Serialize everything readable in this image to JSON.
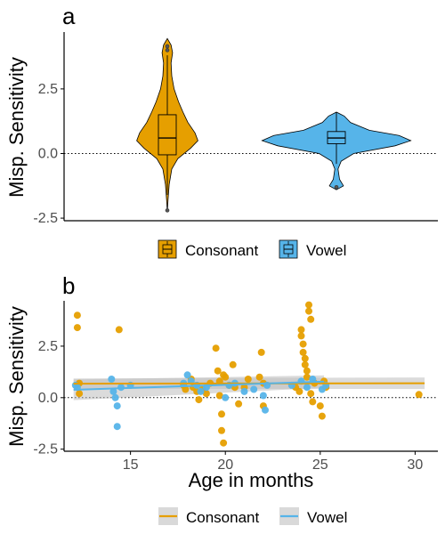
{
  "colors": {
    "consonant": "#E69F00",
    "vowel": "#56B4E9",
    "axis": "#000000",
    "zero_line": "#000000",
    "ribbon": "#BEBEBE",
    "legend_key_bg": "#D9D9D9"
  },
  "chart_data": [
    {
      "panel": "a",
      "type": "violin",
      "ylabel": "Misp. Sensitivity",
      "xlabel": "",
      "ylim": [
        -2.6,
        4.7
      ],
      "yticks": [
        "-2.5",
        "0.0",
        "2.5"
      ],
      "reference_line": {
        "y": 0,
        "style": "dotted"
      },
      "series": [
        {
          "name": "Consonant",
          "color": "#E69F00",
          "min": -2.2,
          "q1": -0.05,
          "median": 0.6,
          "q3": 1.5,
          "max": 4.4,
          "whisker_low": -1.6,
          "whisker_high": 3.8,
          "outliers": [
            -2.2,
            4.0,
            4.15
          ],
          "density": [
            [
              -2.25,
              0.0
            ],
            [
              -1.8,
              0.02
            ],
            [
              -1.2,
              0.05
            ],
            [
              -0.6,
              0.12
            ],
            [
              -0.2,
              0.28
            ],
            [
              0.2,
              0.62
            ],
            [
              0.5,
              0.82
            ],
            [
              0.8,
              0.74
            ],
            [
              1.2,
              0.55
            ],
            [
              1.6,
              0.42
            ],
            [
              2.0,
              0.3
            ],
            [
              2.5,
              0.18
            ],
            [
              3.0,
              0.12
            ],
            [
              3.5,
              0.1
            ],
            [
              3.9,
              0.14
            ],
            [
              4.2,
              0.1
            ],
            [
              4.45,
              0.0
            ]
          ]
        },
        {
          "name": "Vowel",
          "color": "#56B4E9",
          "min": -1.35,
          "q1": 0.38,
          "median": 0.6,
          "q3": 0.85,
          "max": 1.6,
          "whisker_low": -0.4,
          "whisker_high": 1.6,
          "outliers": [
            -1.3
          ],
          "density": [
            [
              -1.4,
              0.0
            ],
            [
              -1.25,
              0.09
            ],
            [
              -1.0,
              0.04
            ],
            [
              -0.6,
              0.02
            ],
            [
              -0.3,
              0.06
            ],
            [
              0.0,
              0.22
            ],
            [
              0.3,
              0.75
            ],
            [
              0.5,
              0.95
            ],
            [
              0.7,
              0.8
            ],
            [
              0.9,
              0.42
            ],
            [
              1.2,
              0.18
            ],
            [
              1.45,
              0.1
            ],
            [
              1.6,
              0.0
            ]
          ]
        }
      ],
      "legend": {
        "position": "bottom",
        "entries": [
          "Consonant",
          "Vowel"
        ]
      }
    },
    {
      "panel": "b",
      "type": "scatter",
      "xlabel": "Age in months",
      "ylabel": "Misp. Sensitivity",
      "xlim": [
        11.5,
        31.2
      ],
      "ylim": [
        -2.6,
        4.7
      ],
      "xticks": [
        "15",
        "20",
        "25",
        "30"
      ],
      "yticks": [
        "-2.5",
        "0.0",
        "2.5"
      ],
      "reference_line": {
        "y": 0,
        "style": "dotted"
      },
      "series": [
        {
          "name": "Consonant",
          "color": "#E69F00",
          "points": [
            [
              12.2,
              4.0
            ],
            [
              12.2,
              3.4
            ],
            [
              12.3,
              0.7
            ],
            [
              12.3,
              0.2
            ],
            [
              14.4,
              3.3
            ],
            [
              17.8,
              0.6
            ],
            [
              17.9,
              0.4
            ],
            [
              18.2,
              0.9
            ],
            [
              18.3,
              0.5
            ],
            [
              18.5,
              0.3
            ],
            [
              18.6,
              -0.1
            ],
            [
              18.8,
              0.4
            ],
            [
              19.0,
              0.2
            ],
            [
              19.2,
              0.7
            ],
            [
              19.5,
              2.4
            ],
            [
              19.6,
              1.3
            ],
            [
              19.7,
              0.8
            ],
            [
              19.7,
              0.1
            ],
            [
              19.8,
              -0.8
            ],
            [
              19.8,
              -1.6
            ],
            [
              19.9,
              -2.2
            ],
            [
              19.9,
              1.1
            ],
            [
              20.0,
              1.0
            ],
            [
              20.2,
              0.6
            ],
            [
              20.4,
              1.6
            ],
            [
              20.5,
              0.5
            ],
            [
              20.7,
              -0.3
            ],
            [
              21.0,
              0.5
            ],
            [
              21.2,
              0.9
            ],
            [
              21.8,
              1.0
            ],
            [
              21.9,
              2.2
            ],
            [
              22.0,
              0.7
            ],
            [
              22.0,
              -0.4
            ],
            [
              23.7,
              0.5
            ],
            [
              23.9,
              0.3
            ],
            [
              24.0,
              3.3
            ],
            [
              24.0,
              3.0
            ],
            [
              24.1,
              2.6
            ],
            [
              24.1,
              2.2
            ],
            [
              24.2,
              1.9
            ],
            [
              24.2,
              1.6
            ],
            [
              24.3,
              1.3
            ],
            [
              24.3,
              1.0
            ],
            [
              24.4,
              4.5
            ],
            [
              24.4,
              4.2
            ],
            [
              24.5,
              3.8
            ],
            [
              24.5,
              0.2
            ],
            [
              24.6,
              -0.2
            ],
            [
              24.7,
              0.7
            ],
            [
              25.0,
              -0.4
            ],
            [
              25.1,
              -0.9
            ],
            [
              25.2,
              0.8
            ],
            [
              25.3,
              0.5
            ],
            [
              30.2,
              0.15
            ]
          ],
          "trend": {
            "x": [
              12.0,
              30.5
            ],
            "y": [
              0.68,
              0.7
            ],
            "ribbon": [
              0.25,
              0.28
            ]
          }
        },
        {
          "name": "Vowel",
          "color": "#56B4E9",
          "points": [
            [
              12.1,
              0.6
            ],
            [
              12.2,
              0.5
            ],
            [
              14.0,
              0.9
            ],
            [
              14.1,
              0.3
            ],
            [
              14.2,
              0.0
            ],
            [
              14.3,
              -0.4
            ],
            [
              14.3,
              -1.4
            ],
            [
              14.5,
              0.5
            ],
            [
              15.0,
              0.6
            ],
            [
              17.8,
              0.7
            ],
            [
              18.0,
              1.1
            ],
            [
              18.2,
              0.8
            ],
            [
              18.5,
              0.6
            ],
            [
              18.7,
              0.3
            ],
            [
              19.0,
              0.5
            ],
            [
              20.0,
              0.0
            ],
            [
              20.2,
              0.6
            ],
            [
              20.5,
              0.7
            ],
            [
              21.0,
              0.3
            ],
            [
              21.5,
              0.4
            ],
            [
              22.0,
              0.1
            ],
            [
              22.1,
              -0.6
            ],
            [
              22.2,
              0.6
            ],
            [
              23.5,
              0.6
            ],
            [
              24.0,
              0.8
            ],
            [
              24.3,
              0.5
            ],
            [
              24.6,
              0.9
            ],
            [
              25.1,
              0.4
            ],
            [
              25.3,
              0.6
            ]
          ],
          "trend": {
            "x": [
              12.0,
              25.2
            ],
            "y": [
              0.38,
              0.78
            ],
            "ribbon": [
              0.5,
              0.3
            ]
          }
        }
      ],
      "legend": {
        "position": "bottom",
        "entries": [
          "Consonant",
          "Vowel"
        ]
      }
    }
  ],
  "panel_a": {
    "letter": "a",
    "ylabel": "Misp. Sensitivity",
    "yticks": [
      "-2.5",
      "0.0",
      "2.5"
    ],
    "legend": {
      "consonant": "Consonant",
      "vowel": "Vowel"
    }
  },
  "panel_b": {
    "letter": "b",
    "ylabel": "Misp. Sensitivity",
    "xlabel": "Age in months",
    "xticks": [
      "15",
      "20",
      "25",
      "30"
    ],
    "yticks": [
      "-2.5",
      "0.0",
      "2.5"
    ],
    "legend": {
      "consonant": "Consonant",
      "vowel": "Vowel"
    }
  }
}
